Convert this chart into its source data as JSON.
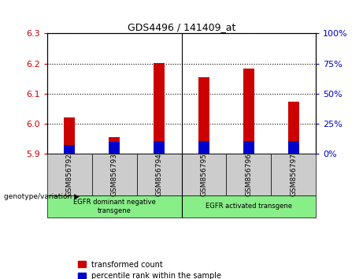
{
  "title": "GDS4496 / 141409_at",
  "samples": [
    "GSM856792",
    "GSM856793",
    "GSM856794",
    "GSM856795",
    "GSM856796",
    "GSM856797"
  ],
  "red_values": [
    6.02,
    5.955,
    6.202,
    6.155,
    6.182,
    6.072
  ],
  "blue_values": [
    5.928,
    5.938,
    5.942,
    5.94,
    5.942,
    5.94
  ],
  "bar_bottom": 5.9,
  "ylim": [
    5.9,
    6.3
  ],
  "yticks_left": [
    5.9,
    6.0,
    6.1,
    6.2,
    6.3
  ],
  "yticks_right": [
    0,
    25,
    50,
    75,
    100
  ],
  "yticks_right_vals": [
    5.9,
    6.0,
    6.1,
    6.2,
    6.3
  ],
  "left_color": "#cc0000",
  "right_color": "#0000cc",
  "blue_bar_color": "#0000cc",
  "red_bar_color": "#cc0000",
  "group1_label": "EGFR dominant negative\ntransgene",
  "group2_label": "EGFR activated transgene",
  "group1_indices": [
    0,
    1,
    2
  ],
  "group2_indices": [
    3,
    4,
    5
  ],
  "genotype_label": "genotype/variation",
  "legend_red": "transformed count",
  "legend_blue": "percentile rank within the sample",
  "group_bg_color": "#88ee88",
  "sample_bg_color": "#cccccc",
  "bar_width": 0.25
}
